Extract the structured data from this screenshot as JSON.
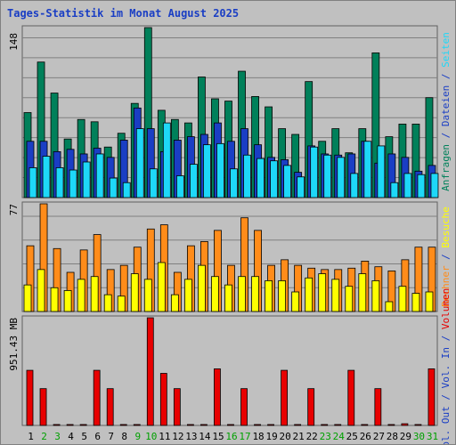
{
  "title": "Tages-Statistik im Monat August 2025",
  "chart_data": [
    {
      "type": "bar",
      "categories": [
        "1",
        "2",
        "3",
        "4",
        "5",
        "6",
        "7",
        "8",
        "9",
        "10",
        "11",
        "12",
        "13",
        "14",
        "15",
        "16",
        "17",
        "18",
        "19",
        "20",
        "21",
        "22",
        "23",
        "24",
        "25",
        "26",
        "27",
        "28",
        "29",
        "30",
        "31"
      ],
      "weekend_days": [
        "2",
        "3",
        "9",
        "10",
        "16",
        "17",
        "23",
        "24",
        "30",
        "31"
      ],
      "ymax_label": "148",
      "ymax": 148,
      "series": [
        {
          "name": "Anfragen",
          "color": "#00805a",
          "values": [
            74,
            118,
            91,
            51,
            68,
            66,
            44,
            56,
            82,
            148,
            76,
            68,
            65,
            105,
            86,
            84,
            110,
            88,
            79,
            60,
            55,
            101,
            49,
            60,
            39,
            60,
            126,
            53,
            64,
            64,
            87
          ]
        },
        {
          "name": "Dateien",
          "color": "#1a3ec4",
          "values": [
            49,
            49,
            40,
            42,
            38,
            43,
            35,
            50,
            78,
            60,
            40,
            50,
            53,
            55,
            65,
            49,
            60,
            46,
            35,
            33,
            22,
            45,
            38,
            37,
            38,
            49,
            30,
            38,
            35,
            23,
            28
          ]
        },
        {
          "name": "Seiten",
          "color": "#1ed8f8",
          "values": [
            26,
            36,
            26,
            24,
            31,
            38,
            17,
            13,
            60,
            25,
            65,
            19,
            29,
            46,
            47,
            25,
            37,
            34,
            32,
            28,
            18,
            44,
            37,
            35,
            21,
            49,
            45,
            13,
            21,
            20,
            21
          ]
        }
      ]
    },
    {
      "type": "bar",
      "categories": [
        "1",
        "2",
        "3",
        "4",
        "5",
        "6",
        "7",
        "8",
        "9",
        "10",
        "11",
        "12",
        "13",
        "14",
        "15",
        "16",
        "17",
        "18",
        "19",
        "20",
        "21",
        "22",
        "23",
        "24",
        "25",
        "26",
        "27",
        "28",
        "29",
        "30",
        "31"
      ],
      "ymax_label": "77",
      "ymax": 77,
      "series": [
        {
          "name": "Rechner",
          "color": "#ff8c1a",
          "values": [
            47,
            77,
            45,
            28,
            44,
            55,
            30,
            33,
            46,
            59,
            62,
            28,
            47,
            50,
            58,
            33,
            67,
            58,
            33,
            37,
            33,
            31,
            30,
            30,
            31,
            36,
            32,
            29,
            37,
            46,
            46
          ]
        },
        {
          "name": "Besuche",
          "color": "#ffff00",
          "values": [
            19,
            30,
            17,
            15,
            23,
            25,
            12,
            11,
            27,
            23,
            35,
            12,
            23,
            33,
            25,
            19,
            25,
            25,
            22,
            22,
            14,
            24,
            27,
            23,
            18,
            27,
            22,
            7,
            18,
            13,
            14
          ]
        }
      ]
    },
    {
      "type": "bar",
      "categories": [
        "1",
        "2",
        "3",
        "4",
        "5",
        "6",
        "7",
        "8",
        "9",
        "10",
        "11",
        "12",
        "13",
        "14",
        "15",
        "16",
        "17",
        "18",
        "19",
        "20",
        "21",
        "22",
        "23",
        "24",
        "25",
        "26",
        "27",
        "28",
        "29",
        "30",
        "31"
      ],
      "ymax_label": "951.43 MB",
      "ymax": 951.43,
      "unit": "MB",
      "series": [
        {
          "name": "Volumen",
          "color": "#e80000",
          "values": [
            487,
            325,
            8,
            8,
            8,
            487,
            325,
            8,
            8,
            951,
            460,
            325,
            8,
            8,
            500,
            8,
            325,
            8,
            8,
            487,
            8,
            325,
            8,
            8,
            487,
            8,
            325,
            8,
            15,
            8,
            500
          ]
        }
      ]
    }
  ],
  "right_labels": {
    "panel1": [
      {
        "text": "Anfragen",
        "color": "#00805a"
      },
      {
        "text": " / ",
        "color": "#1a3ec4"
      },
      {
        "text": "Dateien",
        "color": "#1a3ec4"
      },
      {
        "text": " / ",
        "color": "#1a3ec4"
      },
      {
        "text": "Seiten",
        "color": "#1ed8f8"
      }
    ],
    "panel2": [
      {
        "text": "Rechner",
        "color": "#ff8c1a"
      },
      {
        "text": " / ",
        "color": "#1a3ec4"
      },
      {
        "text": "Besuche",
        "color": "#ffff00"
      }
    ],
    "panel3": [
      {
        "text": "Vol. Out",
        "color": "#1a3ec4"
      },
      {
        "text": " / ",
        "color": "#1a3ec4"
      },
      {
        "text": "Vol. In",
        "color": "#1a3ec4"
      },
      {
        "text": " / ",
        "color": "#1a3ec4"
      },
      {
        "text": "Volumen",
        "color": "#e80000"
      }
    ]
  },
  "colors": {
    "background": "#c0c0c0",
    "grid": "#808080",
    "weekday_label": "#000000",
    "weekend_label": "#00a000",
    "title": "#1a3ec4"
  }
}
